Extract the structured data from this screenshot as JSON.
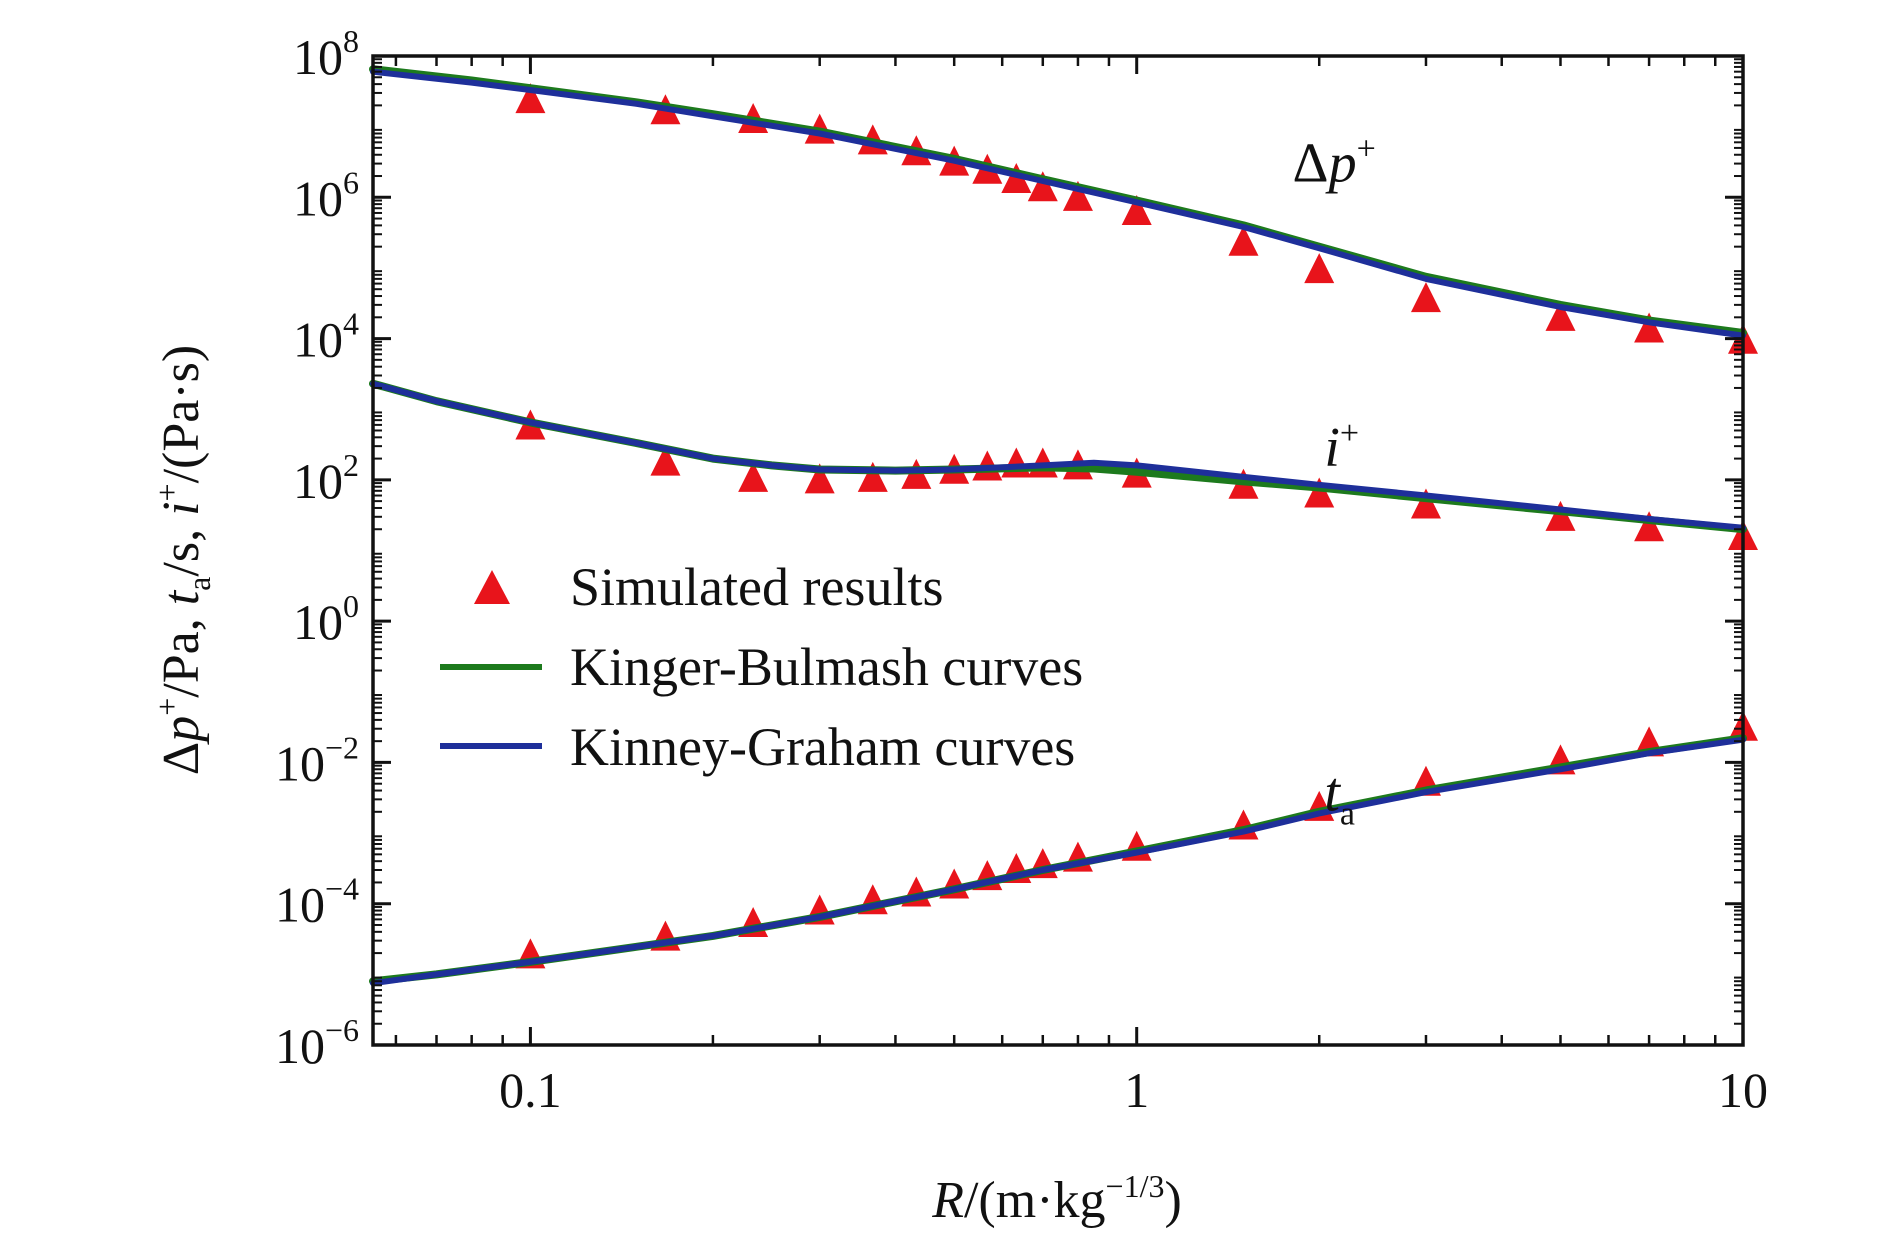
{
  "chart_data": {
    "type": "scatter",
    "x_scale": "log",
    "y_scale": "log",
    "xlim": [
      0.055,
      10
    ],
    "ylim": [
      1e-06,
      100000000.0
    ],
    "grid": false,
    "legend_position": "middle-left",
    "x_ticks": [
      {
        "value": 0.1,
        "label": "0.1"
      },
      {
        "value": 1,
        "label": "1"
      },
      {
        "value": 10,
        "label": "10"
      }
    ],
    "y_ticks": [
      {
        "value": 100000000.0,
        "base": "10",
        "exp": "8"
      },
      {
        "value": 1000000.0,
        "base": "10",
        "exp": "6"
      },
      {
        "value": 10000.0,
        "base": "10",
        "exp": "4"
      },
      {
        "value": 100.0,
        "base": "10",
        "exp": "2"
      },
      {
        "value": 1,
        "base": "10",
        "exp": "0"
      },
      {
        "value": 0.01,
        "base": "10",
        "exp": "−2"
      },
      {
        "value": 0.0001,
        "base": "10",
        "exp": "−4"
      },
      {
        "value": 1e-06,
        "base": "10",
        "exp": "−6"
      }
    ],
    "xlabel": {
      "var": "R",
      "rest": "/(m·kg",
      "sup": "−1/3",
      "close": ")"
    },
    "ylabel": {
      "p1": "Δ",
      "p2": "p",
      "p3": "+",
      "p4": "/Pa, ",
      "t": "t",
      "tsub": "a",
      "p5": "/s, ",
      "i": "i",
      "isup": "+",
      "p6": "/(Pa·s)"
    },
    "curve_labels": [
      {
        "main": "Δ",
        "var": "p",
        "sup": "+",
        "sub": "",
        "at_x": 1.95,
        "at_y": 3200000.0
      },
      {
        "main": "",
        "var": "i",
        "sup": "+",
        "sub": "",
        "at_x": 2.2,
        "at_y": 300
      },
      {
        "main": "",
        "var": "t",
        "sup": "",
        "sub": "a",
        "at_x": 2.2,
        "at_y": 0.004
      }
    ],
    "legend": [
      {
        "label": "Simulated results",
        "marker": "triangle",
        "color": "#e8141b"
      },
      {
        "label": "Kinger-Bulmash curves",
        "marker": "line",
        "color": "#1d7a1d"
      },
      {
        "label": "Kinney-Graham curves",
        "marker": "line",
        "color": "#1e2f9a"
      }
    ],
    "series": [
      {
        "name": "Simulated results",
        "kind": "markers",
        "color": "#e8141b",
        "groups": [
          {
            "quantity": "Δp+",
            "points": [
              [
                0.1,
                23000000.0
              ],
              [
                0.167,
                16000000.0
              ],
              [
                0.233,
                12000000.0
              ],
              [
                0.3,
                8500000.0
              ],
              [
                0.367,
                6000000.0
              ],
              [
                0.433,
                4200000.0
              ],
              [
                0.5,
                3000000.0
              ],
              [
                0.567,
                2300000.0
              ],
              [
                0.633,
                1700000.0
              ],
              [
                0.7,
                1300000.0
              ],
              [
                0.8,
                950000.0
              ],
              [
                1,
                600000.0
              ],
              [
                1.5,
                220000.0
              ],
              [
                2,
                90000.0
              ],
              [
                3,
                35000.0
              ],
              [
                5,
                19000.0
              ],
              [
                7,
                13000.0
              ],
              [
                10,
                9000.0
              ]
            ]
          },
          {
            "quantity": "i+",
            "points": [
              [
                0.1,
                550
              ],
              [
                0.167,
                170
              ],
              [
                0.233,
                100
              ],
              [
                0.3,
                95
              ],
              [
                0.367,
                100
              ],
              [
                0.433,
                110
              ],
              [
                0.5,
                130
              ],
              [
                0.567,
                145
              ],
              [
                0.633,
                160
              ],
              [
                0.7,
                160
              ],
              [
                0.8,
                150
              ],
              [
                1,
                115
              ],
              [
                1.5,
                80
              ],
              [
                2,
                60
              ],
              [
                3,
                42
              ],
              [
                5,
                28
              ],
              [
                7,
                20
              ],
              [
                10,
                15
              ]
            ]
          },
          {
            "quantity": "ta",
            "points": [
              [
                0.1,
                1.8e-05
              ],
              [
                0.167,
                3.2e-05
              ],
              [
                0.233,
                5e-05
              ],
              [
                0.3,
                7.5e-05
              ],
              [
                0.367,
                0.000105
              ],
              [
                0.433,
                0.000135
              ],
              [
                0.5,
                0.000175
              ],
              [
                0.567,
                0.00023
              ],
              [
                0.633,
                0.00029
              ],
              [
                0.7,
                0.00034
              ],
              [
                0.8,
                0.00042
              ],
              [
                1,
                0.0006
              ],
              [
                1.5,
                0.0012
              ],
              [
                2,
                0.0022
              ],
              [
                3,
                0.005
              ],
              [
                5,
                0.01
              ],
              [
                7,
                0.018
              ],
              [
                10,
                0.03
              ]
            ]
          }
        ]
      },
      {
        "name": "Kinger-Bulmash curves",
        "kind": "line",
        "color": "#1d7a1d",
        "groups": [
          {
            "quantity": "Δp+",
            "points": [
              [
                0.055,
                65000000.0
              ],
              [
                0.08,
                45000000.0
              ],
              [
                0.1,
                35000000.0
              ],
              [
                0.15,
                22000000.0
              ],
              [
                0.2,
                15000000.0
              ],
              [
                0.3,
                8500000.0
              ],
              [
                0.5,
                3500000.0
              ],
              [
                0.7,
                1800000.0
              ],
              [
                1,
                900000.0
              ],
              [
                1.5,
                400000.0
              ],
              [
                2,
                200000.0
              ],
              [
                3,
                75000.0
              ],
              [
                5,
                30000.0
              ],
              [
                7,
                18000.0
              ],
              [
                10,
                12000.0
              ]
            ]
          },
          {
            "quantity": "i+",
            "points": [
              [
                0.055,
                2300
              ],
              [
                0.07,
                1300
              ],
              [
                0.1,
                650
              ],
              [
                0.15,
                330
              ],
              [
                0.2,
                200
              ],
              [
                0.25,
                160
              ],
              [
                0.3,
                140
              ],
              [
                0.4,
                135
              ],
              [
                0.5,
                140
              ],
              [
                0.7,
                150
              ],
              [
                0.85,
                145
              ],
              [
                1,
                130
              ],
              [
                1.5,
                95
              ],
              [
                2,
                78
              ],
              [
                3,
                55
              ],
              [
                5,
                36
              ],
              [
                7,
                27
              ],
              [
                10,
                20
              ]
            ]
          },
          {
            "quantity": "ta",
            "points": [
              [
                0.055,
                8e-06
              ],
              [
                0.07,
                1e-05
              ],
              [
                0.1,
                1.5e-05
              ],
              [
                0.2,
                3.5e-05
              ],
              [
                0.3,
                6.5e-05
              ],
              [
                0.5,
                0.00016
              ],
              [
                0.7,
                0.0003
              ],
              [
                1,
                0.00055
              ],
              [
                1.5,
                0.0011
              ],
              [
                2,
                0.002
              ],
              [
                3,
                0.004
              ],
              [
                5,
                0.0085
              ],
              [
                7,
                0.014
              ],
              [
                10,
                0.022
              ]
            ]
          }
        ]
      },
      {
        "name": "Kinney-Graham curves",
        "kind": "line",
        "color": "#1e2f9a",
        "groups": [
          {
            "quantity": "Δp+",
            "points": [
              [
                0.055,
                60000000.0
              ],
              [
                0.08,
                42000000.0
              ],
              [
                0.1,
                33000000.0
              ],
              [
                0.15,
                21000000.0
              ],
              [
                0.2,
                14000000.0
              ],
              [
                0.3,
                8000000.0
              ],
              [
                0.5,
                3300000.0
              ],
              [
                0.7,
                1700000.0
              ],
              [
                1,
                850000.0
              ],
              [
                1.5,
                380000.0
              ],
              [
                2,
                190000.0
              ],
              [
                3,
                70000.0
              ],
              [
                5,
                28000.0
              ],
              [
                7,
                17000.0
              ],
              [
                10,
                11000.0
              ]
            ]
          },
          {
            "quantity": "i+",
            "points": [
              [
                0.055,
                2300
              ],
              [
                0.07,
                1300
              ],
              [
                0.1,
                650
              ],
              [
                0.15,
                330
              ],
              [
                0.2,
                200
              ],
              [
                0.25,
                160
              ],
              [
                0.3,
                140
              ],
              [
                0.4,
                135
              ],
              [
                0.5,
                140
              ],
              [
                0.7,
                160
              ],
              [
                0.85,
                175
              ],
              [
                1,
                160
              ],
              [
                1.5,
                110
              ],
              [
                2,
                85
              ],
              [
                3,
                60
              ],
              [
                5,
                38
              ],
              [
                7,
                28
              ],
              [
                10,
                21
              ]
            ]
          },
          {
            "quantity": "ta",
            "points": [
              [
                0.055,
                7.5e-06
              ],
              [
                0.07,
                1e-05
              ],
              [
                0.1,
                1.5e-05
              ],
              [
                0.2,
                3.5e-05
              ],
              [
                0.3,
                6.5e-05
              ],
              [
                0.5,
                0.00016
              ],
              [
                0.7,
                0.0003
              ],
              [
                1,
                0.00053
              ],
              [
                1.5,
                0.00105
              ],
              [
                2,
                0.0019
              ],
              [
                3,
                0.0038
              ],
              [
                5,
                0.008
              ],
              [
                7,
                0.0135
              ],
              [
                10,
                0.021
              ]
            ]
          }
        ]
      }
    ]
  }
}
